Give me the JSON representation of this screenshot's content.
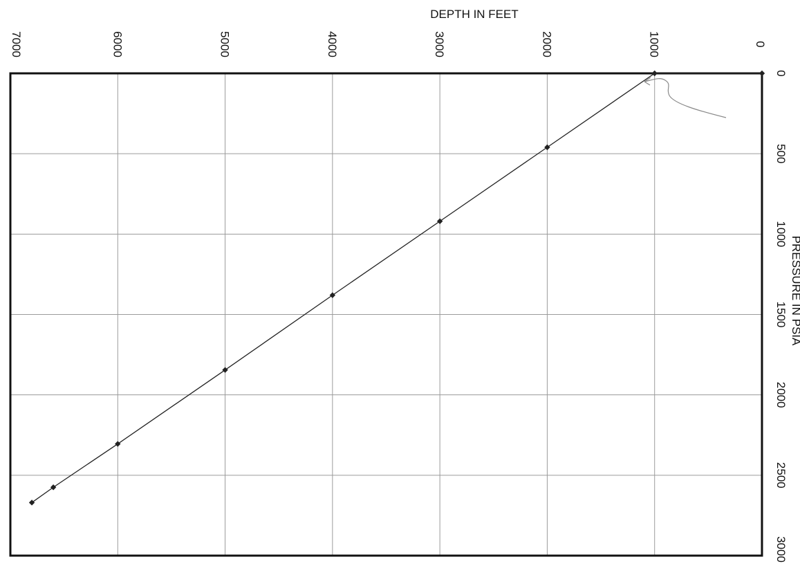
{
  "chart_data": {
    "type": "scatter",
    "orientation": "rotated-90-clockwise",
    "title": "",
    "xlabel": "DEPTH IN FEET",
    "ylabel": "PRESSURE IN PSIA",
    "xlim": [
      0,
      7000
    ],
    "ylim": [
      0,
      3000
    ],
    "x_ticks": [
      "0",
      "1000",
      "2000",
      "3000",
      "4000",
      "5000",
      "6000",
      "7000"
    ],
    "y_ticks": [
      "0",
      "500",
      "1000",
      "1500",
      "2000",
      "2500",
      "3000"
    ],
    "grid": true,
    "legend": "none",
    "series": [
      {
        "marker": "diamond",
        "points": [
          {
            "x": 0,
            "y": 0
          },
          {
            "x": 1000,
            "y": 0
          },
          {
            "x": 2000,
            "y": 460
          },
          {
            "x": 3000,
            "y": 920
          },
          {
            "x": 4000,
            "y": 1380
          },
          {
            "x": 5000,
            "y": 1845
          },
          {
            "x": 6000,
            "y": 2305
          },
          {
            "x": 6600,
            "y": 2575
          },
          {
            "x": 6800,
            "y": 2670
          }
        ]
      }
    ],
    "colors": {
      "line": "#222222",
      "grid": "#9a9a9a",
      "frame": "#111111",
      "annotation": "#888888"
    }
  }
}
